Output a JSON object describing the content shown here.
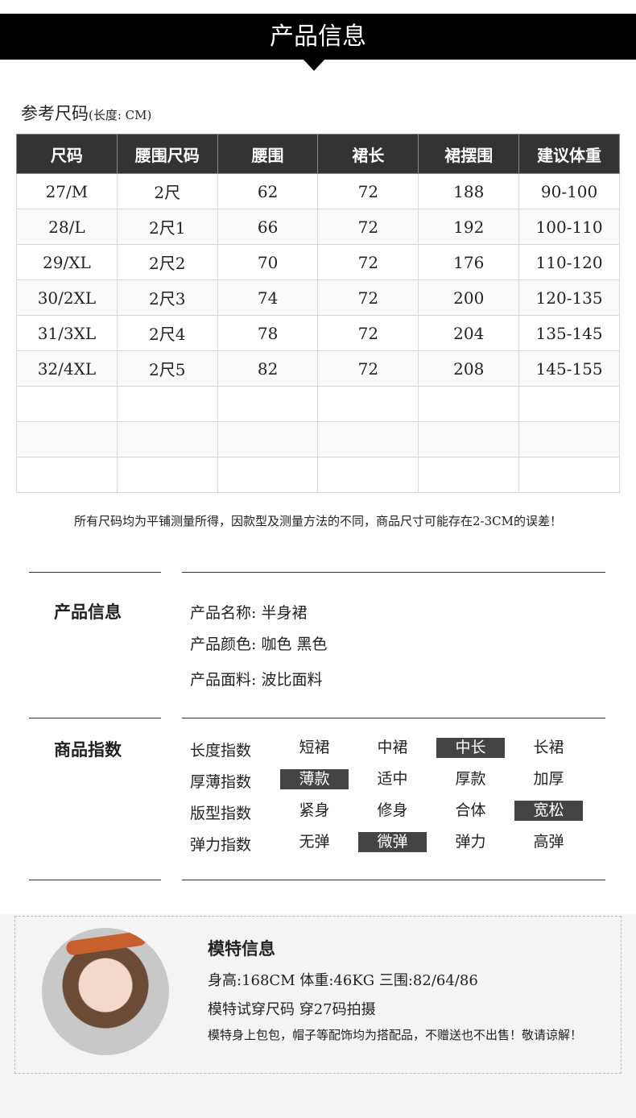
{
  "banner": {
    "title": "产品信息"
  },
  "size_chart": {
    "title": "参考尺码",
    "unit": "(长度: CM)",
    "headers": [
      "尺码",
      "腰围尺码",
      "腰围",
      "裙长",
      "裙摆围",
      "建议体重"
    ],
    "rows": [
      [
        "27/M",
        "2尺",
        "62",
        "72",
        "188",
        "90-100"
      ],
      [
        "28/L",
        "2尺1",
        "66",
        "72",
        "192",
        "100-110"
      ],
      [
        "29/XL",
        "2尺2",
        "70",
        "72",
        "176",
        "110-120"
      ],
      [
        "30/2XL",
        "2尺3",
        "74",
        "72",
        "200",
        "120-135"
      ],
      [
        "31/3XL",
        "2尺4",
        "78",
        "72",
        "204",
        "135-145"
      ],
      [
        "32/4XL",
        "2尺5",
        "82",
        "72",
        "208",
        "145-155"
      ]
    ],
    "note": "所有尺码均为平铺测量所得，因款型及测量方法的不同，商品尺寸可能存在2-3CM的误差！"
  },
  "product": {
    "title": "产品信息",
    "name": "产品名称:  半身裙",
    "color": "产品颜色:  咖色   黑色",
    "fabric": "产品面料:  波比面料"
  },
  "index": {
    "title": "商品指数",
    "rows": [
      {
        "label": "长度指数",
        "options": [
          "短裙",
          "中裙",
          "中长",
          "长裙"
        ],
        "selected": 2
      },
      {
        "label": "厚薄指数",
        "options": [
          "薄款",
          "适中",
          "厚款",
          "加厚"
        ],
        "selected": 0
      },
      {
        "label": "版型指数",
        "options": [
          "紧身",
          "修身",
          "合体",
          "宽松"
        ],
        "selected": 3
      },
      {
        "label": "弹力指数",
        "options": [
          "无弹",
          "微弹",
          "弹力",
          "高弹"
        ],
        "selected": 1
      }
    ]
  },
  "model": {
    "title": "模特信息",
    "stats": "身高:168CM   体重:46KG   三围:82/64/86",
    "size": "模特试穿尺码   穿27码拍摄",
    "note": "模特身上包包，帽子等配饰均为搭配品，不赠送也不出售！敬请谅解！"
  }
}
